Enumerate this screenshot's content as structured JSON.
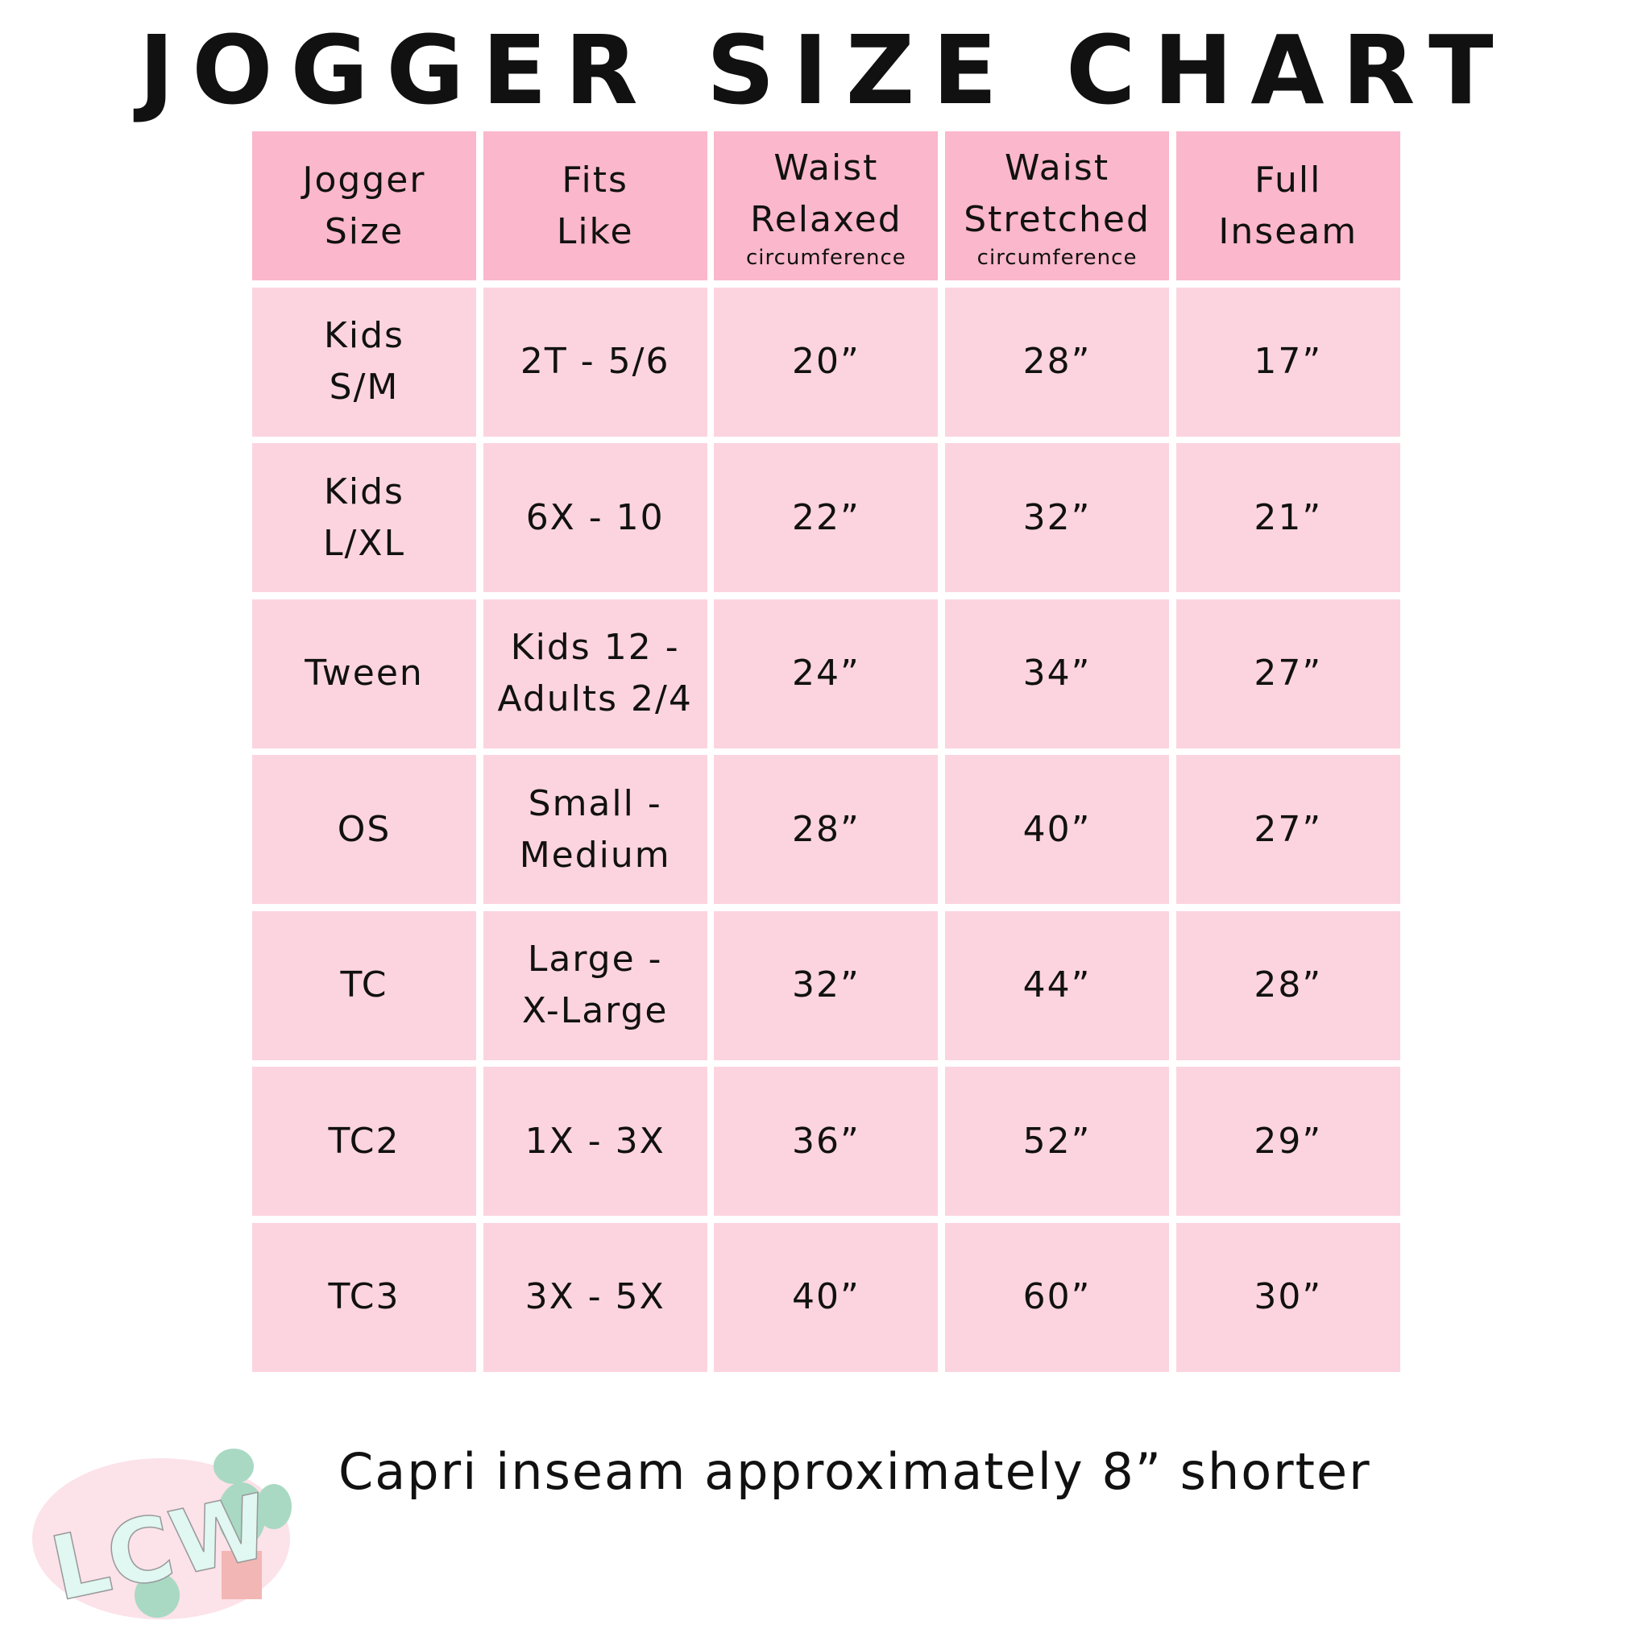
{
  "title": "JOGGER SIZE CHART",
  "headers": [
    {
      "lines": [
        "Jogger",
        "Size"
      ],
      "sub": ""
    },
    {
      "lines": [
        "Fits",
        "Like"
      ],
      "sub": ""
    },
    {
      "lines": [
        "Waist",
        "Relaxed"
      ],
      "sub": "circumference"
    },
    {
      "lines": [
        "Waist",
        "Stretched"
      ],
      "sub": "circumference"
    },
    {
      "lines": [
        "Full",
        "Inseam"
      ],
      "sub": ""
    }
  ],
  "rows": [
    [
      [
        "Kids",
        "S/M"
      ],
      [
        "2T - 5/6"
      ],
      [
        "20”"
      ],
      [
        "28”"
      ],
      [
        "17”"
      ]
    ],
    [
      [
        "Kids",
        "L/XL"
      ],
      [
        "6X - 10"
      ],
      [
        "22”"
      ],
      [
        "32”"
      ],
      [
        "21”"
      ]
    ],
    [
      [
        "Tween"
      ],
      [
        "Kids 12 -",
        "Adults 2/4"
      ],
      [
        "24”"
      ],
      [
        "34”"
      ],
      [
        "27”"
      ]
    ],
    [
      [
        "OS"
      ],
      [
        "Small -",
        "Medium"
      ],
      [
        "28”"
      ],
      [
        "40”"
      ],
      [
        "27”"
      ]
    ],
    [
      [
        "TC"
      ],
      [
        "Large -",
        "X-Large"
      ],
      [
        "32”"
      ],
      [
        "44”"
      ],
      [
        "28”"
      ]
    ],
    [
      [
        "TC2"
      ],
      [
        "1X - 3X"
      ],
      [
        "36”"
      ],
      [
        "52”"
      ],
      [
        "29”"
      ]
    ],
    [
      [
        "TC3"
      ],
      [
        "3X - 5X"
      ],
      [
        "40”"
      ],
      [
        "60”"
      ],
      [
        "30”"
      ]
    ]
  ],
  "note": "Capri inseam approximately 8” shorter",
  "logo": {
    "text": "LCW"
  },
  "colors": {
    "header": "#fbb7cc",
    "row": "#fcd4df"
  }
}
